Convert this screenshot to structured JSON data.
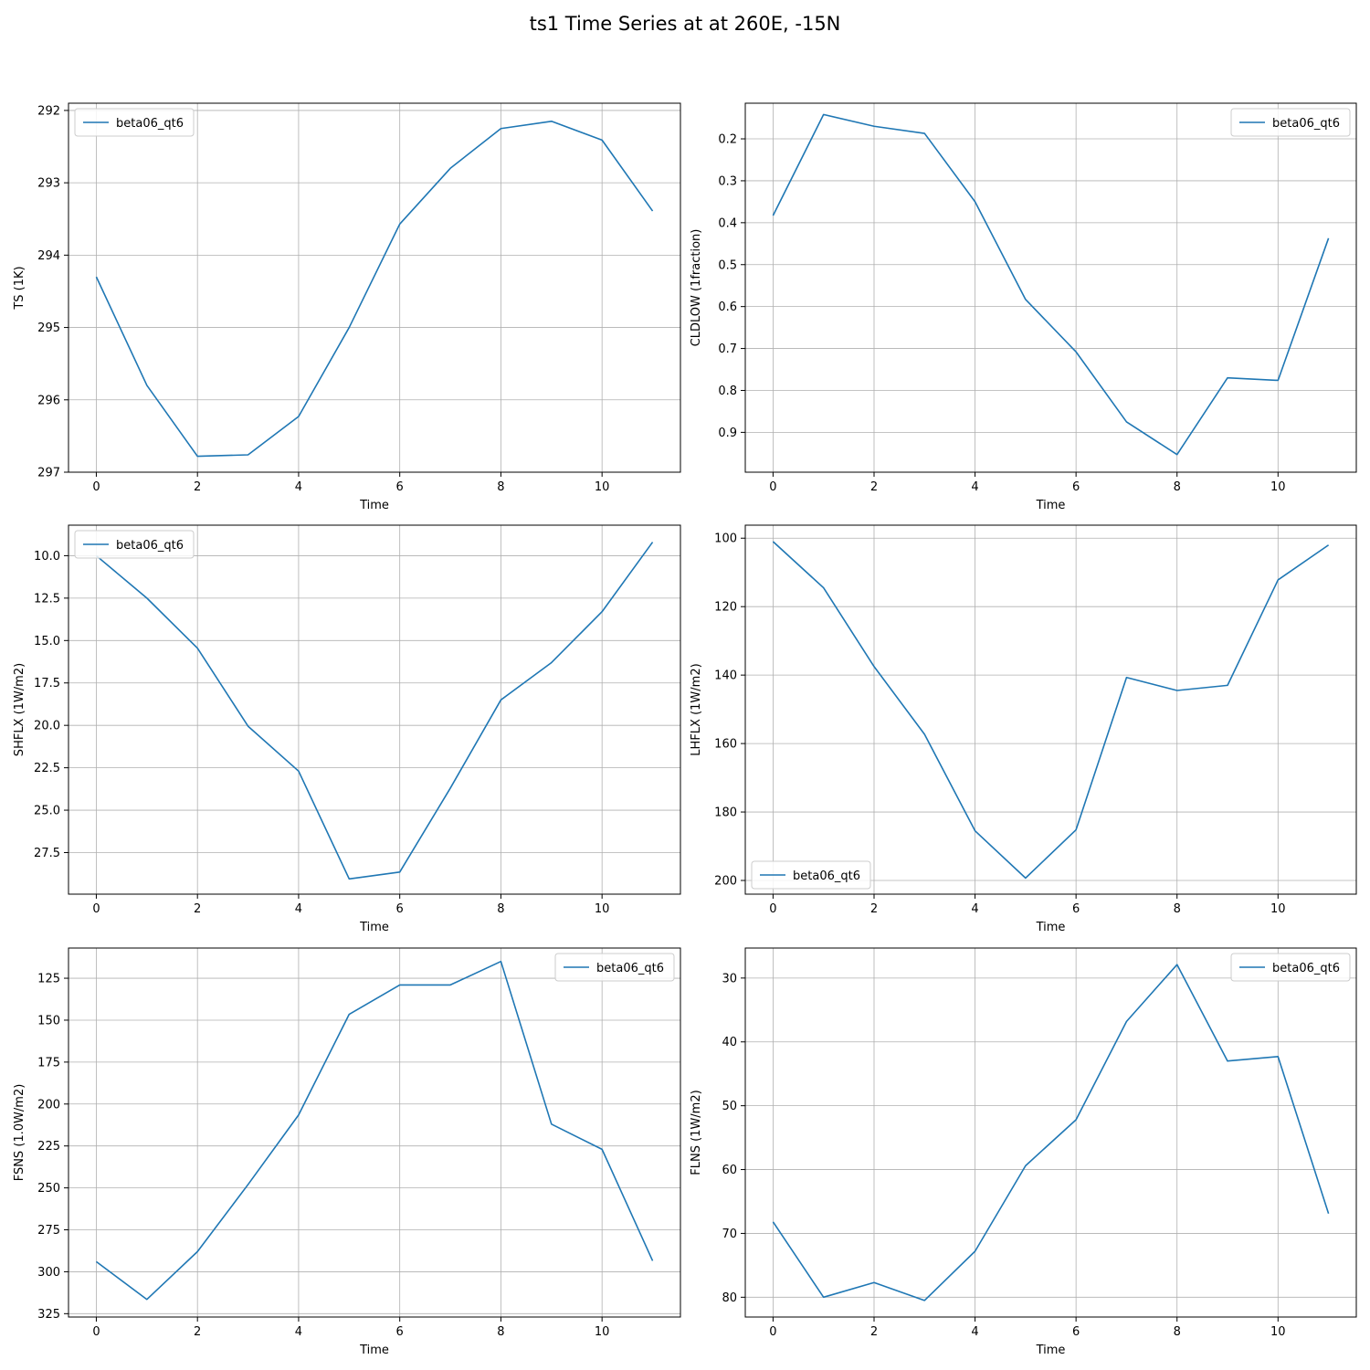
{
  "figure": {
    "title": "ts1 Time Series at at 260E, -15N"
  },
  "chart_data": [
    {
      "type": "line",
      "xlabel": "Time",
      "ylabel": "TS (1K)",
      "x": [
        0,
        1,
        2,
        3,
        4,
        5,
        6,
        7,
        8,
        9,
        10,
        11
      ],
      "xlim": [
        -0.55,
        11.55
      ],
      "ylim": [
        297,
        291.9
      ],
      "y_inverted": true,
      "xticks": [
        0,
        2,
        4,
        6,
        8,
        10
      ],
      "yticks": [
        292,
        293,
        294,
        295,
        296,
        297
      ],
      "grid": true,
      "legend": "top-left",
      "series": [
        {
          "name": "beta06_qt6",
          "color": "#1f77b4",
          "values": [
            294.3,
            295.8,
            296.78,
            296.76,
            296.23,
            295.0,
            293.57,
            292.8,
            292.25,
            292.15,
            292.41,
            293.39
          ]
        }
      ]
    },
    {
      "type": "line",
      "xlabel": "Time",
      "ylabel": "CLDLOW (1fraction)",
      "x": [
        0,
        1,
        2,
        3,
        4,
        5,
        6,
        7,
        8,
        9,
        10,
        11
      ],
      "xlim": [
        -0.55,
        11.55
      ],
      "ylim": [
        0.995,
        0.115
      ],
      "y_inverted": true,
      "xticks": [
        0,
        2,
        4,
        6,
        8,
        10
      ],
      "yticks": [
        0.2,
        0.3,
        0.4,
        0.5,
        0.6,
        0.7,
        0.8,
        0.9
      ],
      "yticklabels": [
        "0.2",
        "0.3",
        "0.4",
        "0.5",
        "0.6",
        "0.7",
        "0.8",
        "0.9"
      ],
      "grid": true,
      "legend": "top-right",
      "series": [
        {
          "name": "beta06_qt6",
          "color": "#1f77b4",
          "values": [
            0.383,
            0.142,
            0.17,
            0.187,
            0.35,
            0.583,
            0.708,
            0.875,
            0.953,
            0.77,
            0.776,
            0.437
          ]
        }
      ]
    },
    {
      "type": "line",
      "xlabel": "Time",
      "ylabel": "SHFLX (1W/m2)",
      "x": [
        0,
        1,
        2,
        3,
        4,
        5,
        6,
        7,
        8,
        9,
        10,
        11
      ],
      "xlim": [
        -0.55,
        11.55
      ],
      "ylim": [
        29.95,
        8.2
      ],
      "y_inverted": true,
      "xticks": [
        0,
        2,
        4,
        6,
        8,
        10
      ],
      "yticks": [
        10,
        12.5,
        15,
        17.5,
        20,
        22.5,
        25,
        27.5
      ],
      "yticklabels": [
        "10.0",
        "12.5",
        "15.0",
        "17.5",
        "20.0",
        "22.5",
        "25.0",
        "27.5"
      ],
      "grid": true,
      "legend": "top-left",
      "series": [
        {
          "name": "beta06_qt6",
          "color": "#1f77b4",
          "values": [
            10.0,
            12.5,
            15.45,
            20.05,
            22.7,
            29.05,
            28.65,
            23.7,
            18.5,
            16.3,
            13.3,
            9.2
          ]
        }
      ]
    },
    {
      "type": "line",
      "xlabel": "Time",
      "ylabel": "LHFLX (1W/m2)",
      "x": [
        0,
        1,
        2,
        3,
        4,
        5,
        6,
        7,
        8,
        9,
        10,
        11
      ],
      "xlim": [
        -0.55,
        11.55
      ],
      "ylim": [
        204,
        96.2
      ],
      "y_inverted": true,
      "xticks": [
        0,
        2,
        4,
        6,
        8,
        10
      ],
      "yticks": [
        100,
        120,
        140,
        160,
        180,
        200
      ],
      "grid": true,
      "legend": "bottom-left",
      "series": [
        {
          "name": "beta06_qt6",
          "color": "#1f77b4",
          "values": [
            101,
            114.5,
            137.5,
            157.3,
            185.5,
            199.3,
            185.2,
            140.7,
            144.5,
            143,
            112.2,
            102
          ]
        }
      ]
    },
    {
      "type": "line",
      "xlabel": "Time",
      "ylabel": "FSNS (1.0W/m2)",
      "x": [
        0,
        1,
        2,
        3,
        4,
        5,
        6,
        7,
        8,
        9,
        10,
        11
      ],
      "xlim": [
        -0.55,
        11.55
      ],
      "ylim": [
        327,
        107
      ],
      "y_inverted": true,
      "xticks": [
        0,
        2,
        4,
        6,
        8,
        10
      ],
      "yticks": [
        125,
        150,
        175,
        200,
        225,
        250,
        275,
        300,
        325
      ],
      "grid": true,
      "legend": "top-right",
      "series": [
        {
          "name": "beta06_qt6",
          "color": "#1f77b4",
          "values": [
            294,
            316.5,
            288,
            248,
            206.5,
            146.5,
            129,
            129,
            115,
            212,
            227,
            293.5
          ]
        }
      ]
    },
    {
      "type": "line",
      "xlabel": "Time",
      "ylabel": "FLNS (1W/m2)",
      "x": [
        0,
        1,
        2,
        3,
        4,
        5,
        6,
        7,
        8,
        9,
        10,
        11
      ],
      "xlim": [
        -0.55,
        11.55
      ],
      "ylim": [
        83.1,
        25.3
      ],
      "y_inverted": true,
      "xticks": [
        0,
        2,
        4,
        6,
        8,
        10
      ],
      "yticks": [
        30,
        40,
        50,
        60,
        70,
        80
      ],
      "grid": true,
      "legend": "top-right",
      "series": [
        {
          "name": "beta06_qt6",
          "color": "#1f77b4",
          "values": [
            68.2,
            80,
            77.7,
            80.5,
            72.8,
            59.4,
            52.2,
            36.8,
            27.9,
            43,
            42.3,
            66.9
          ]
        }
      ]
    }
  ]
}
